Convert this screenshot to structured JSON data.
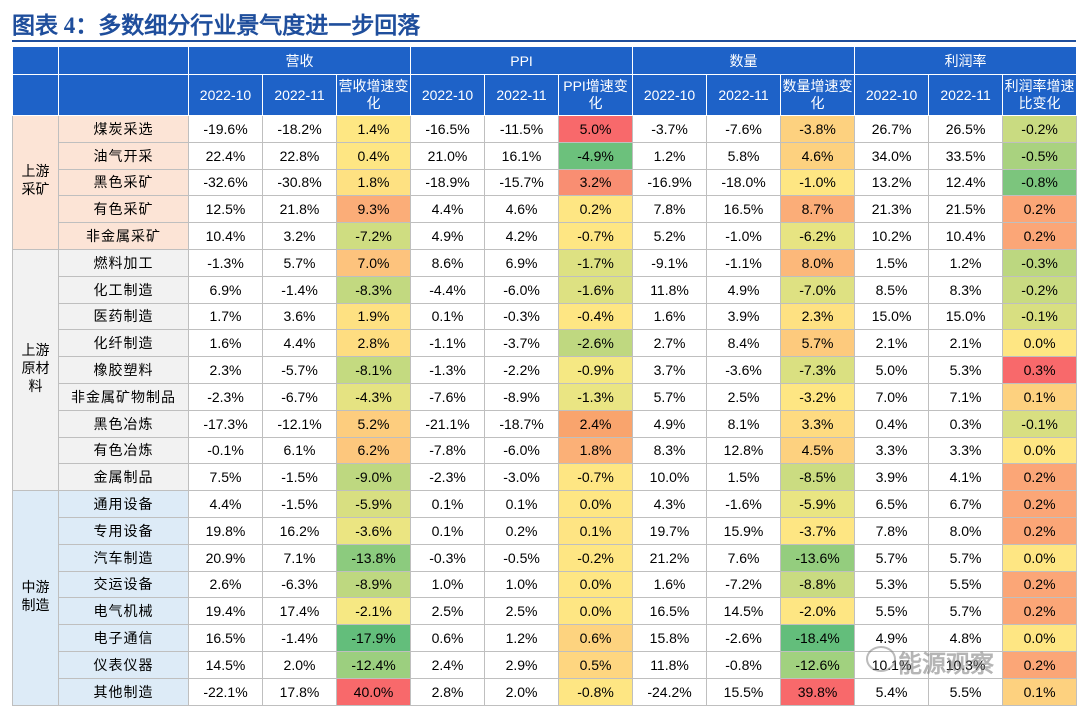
{
  "title": "图表 4：多数细分行业景气度进一步回落",
  "header": {
    "groups": [
      "营收",
      "PPI",
      "数量",
      "利润率"
    ],
    "columns": [
      "2022-10",
      "2022-11",
      "营收增速变化",
      "2022-10",
      "2022-11",
      "PPI增速变化",
      "2022-10",
      "2022-11",
      "数量增速变化",
      "2022-10",
      "2022-11",
      "利润率增速比变化"
    ]
  },
  "sections": [
    {
      "label": "上游采矿",
      "color": "#fce4d6",
      "rows": [
        {
          "name": "煤炭采选",
          "cells": [
            "-19.6%",
            "-18.2%",
            "1.4%",
            "-16.5%",
            "-11.5%",
            "5.0%",
            "-3.7%",
            "-7.6%",
            "-3.8%",
            "26.7%",
            "26.5%",
            "-0.2%"
          ],
          "colors": [
            "#fee783",
            "#f8696b",
            "#fdd17f",
            "#c9db81"
          ]
        },
        {
          "name": "油气开采",
          "cells": [
            "22.4%",
            "22.8%",
            "0.4%",
            "21.0%",
            "16.1%",
            "-4.9%",
            "1.2%",
            "5.8%",
            "4.6%",
            "34.0%",
            "33.5%",
            "-0.5%"
          ],
          "colors": [
            "#fee683",
            "#6cc17c",
            "#fdd17f",
            "#a9d27f"
          ]
        },
        {
          "name": "黑色采矿",
          "cells": [
            "-32.6%",
            "-30.8%",
            "1.8%",
            "-18.9%",
            "-15.7%",
            "3.2%",
            "-16.9%",
            "-18.0%",
            "-1.0%",
            "13.2%",
            "12.4%",
            "-0.8%"
          ],
          "colors": [
            "#fee182",
            "#f98e72",
            "#fee683",
            "#7cc57d"
          ]
        },
        {
          "name": "有色采矿",
          "cells": [
            "12.5%",
            "21.8%",
            "9.3%",
            "4.4%",
            "4.6%",
            "0.2%",
            "7.8%",
            "16.5%",
            "8.7%",
            "21.3%",
            "21.5%",
            "0.2%"
          ],
          "colors": [
            "#fbad78",
            "#fee683",
            "#fbad78",
            "#fba677"
          ]
        },
        {
          "name": "非金属采矿",
          "cells": [
            "10.4%",
            "3.2%",
            "-7.2%",
            "4.9%",
            "4.2%",
            "-0.7%",
            "5.2%",
            "-1.0%",
            "-6.2%",
            "10.2%",
            "10.4%",
            "0.2%"
          ],
          "colors": [
            "#cfdd81",
            "#fee683",
            "#e7e482",
            "#fba677"
          ]
        }
      ]
    },
    {
      "label": "上游原材料",
      "color": "#f2f2f2",
      "rows": [
        {
          "name": "燃料加工",
          "cells": [
            "-1.3%",
            "5.7%",
            "7.0%",
            "8.6%",
            "6.9%",
            "-1.7%",
            "-9.1%",
            "-1.1%",
            "8.0%",
            "1.5%",
            "1.2%",
            "-0.3%"
          ],
          "colors": [
            "#fdc37d",
            "#dde182",
            "#fcb87a",
            "#bcd780"
          ]
        },
        {
          "name": "化工制造",
          "cells": [
            "6.9%",
            "-1.4%",
            "-8.3%",
            "-4.4%",
            "-6.0%",
            "-1.6%",
            "11.8%",
            "4.9%",
            "-7.0%",
            "8.5%",
            "8.3%",
            "-0.2%"
          ],
          "colors": [
            "#c2d980",
            "#dde182",
            "#dee182",
            "#c9db81"
          ]
        },
        {
          "name": "医药制造",
          "cells": [
            "1.7%",
            "3.6%",
            "1.9%",
            "0.1%",
            "-0.3%",
            "-0.4%",
            "1.6%",
            "3.9%",
            "2.3%",
            "15.0%",
            "15.0%",
            "-0.1%"
          ],
          "colors": [
            "#fee182",
            "#fee683",
            "#fee182",
            "#d8df81"
          ]
        },
        {
          "name": "化纤制造",
          "cells": [
            "1.6%",
            "4.4%",
            "2.8%",
            "-1.1%",
            "-3.7%",
            "-2.6%",
            "2.7%",
            "8.4%",
            "5.7%",
            "2.1%",
            "2.1%",
            "0.0%"
          ],
          "colors": [
            "#fedd81",
            "#bfd880",
            "#fdca7d",
            "#fee683"
          ]
        },
        {
          "name": "橡胶塑料",
          "cells": [
            "2.3%",
            "-5.7%",
            "-8.1%",
            "-1.3%",
            "-2.2%",
            "-0.9%",
            "3.7%",
            "-3.6%",
            "-7.3%",
            "5.0%",
            "5.3%",
            "0.3%"
          ],
          "colors": [
            "#c4da80",
            "#f5e883",
            "#dae081",
            "#f8696b"
          ]
        },
        {
          "name": "非金属矿物制品",
          "cells": [
            "-2.3%",
            "-6.7%",
            "-4.3%",
            "-7.6%",
            "-8.9%",
            "-1.3%",
            "5.7%",
            "2.5%",
            "-3.2%",
            "7.0%",
            "7.1%",
            "0.1%"
          ],
          "colors": [
            "#e5e382",
            "#eae583",
            "#fee683",
            "#fdd17f"
          ]
        },
        {
          "name": "黑色冶炼",
          "cells": [
            "-17.3%",
            "-12.1%",
            "5.2%",
            "-21.1%",
            "-18.7%",
            "2.4%",
            "4.9%",
            "8.1%",
            "3.3%",
            "0.4%",
            "0.3%",
            "-0.1%"
          ],
          "colors": [
            "#fdcd7e",
            "#f9a46d",
            "#fedb81",
            "#d8df81"
          ]
        },
        {
          "name": "有色冶炼",
          "cells": [
            "-0.1%",
            "6.1%",
            "6.2%",
            "-7.8%",
            "-6.0%",
            "1.8%",
            "8.3%",
            "12.8%",
            "4.5%",
            "3.3%",
            "3.3%",
            "0.0%"
          ],
          "colors": [
            "#fdc77d",
            "#fbb077",
            "#fdd17f",
            "#fee683"
          ]
        },
        {
          "name": "金属制品",
          "cells": [
            "7.5%",
            "-1.5%",
            "-9.0%",
            "-2.3%",
            "-3.0%",
            "-0.7%",
            "10.0%",
            "1.5%",
            "-8.5%",
            "3.9%",
            "4.1%",
            "0.2%"
          ],
          "colors": [
            "#bed880",
            "#fee683",
            "#cbdc81",
            "#fba677"
          ]
        }
      ]
    },
    {
      "label": "中游制造",
      "color": "#ddebf7",
      "rows": [
        {
          "name": "通用设备",
          "cells": [
            "4.4%",
            "-1.5%",
            "-5.9%",
            "0.1%",
            "0.1%",
            "0.0%",
            "4.3%",
            "-1.6%",
            "-5.9%",
            "6.5%",
            "6.7%",
            "0.2%"
          ],
          "colors": [
            "#d8df81",
            "#fee683",
            "#e9e582",
            "#fba677"
          ]
        },
        {
          "name": "专用设备",
          "cells": [
            "19.8%",
            "16.2%",
            "-3.6%",
            "0.1%",
            "0.2%",
            "0.1%",
            "19.7%",
            "15.9%",
            "-3.7%",
            "7.8%",
            "8.0%",
            "0.2%"
          ],
          "colors": [
            "#ebe582",
            "#fee483",
            "#fee683",
            "#fba677"
          ]
        },
        {
          "name": "汽车制造",
          "cells": [
            "20.9%",
            "7.1%",
            "-13.8%",
            "-0.3%",
            "-0.5%",
            "-0.2%",
            "21.2%",
            "7.6%",
            "-13.6%",
            "5.7%",
            "5.7%",
            "0.0%"
          ],
          "colors": [
            "#8ccb7e",
            "#fee683",
            "#94cd7e",
            "#fee683"
          ]
        },
        {
          "name": "交运设备",
          "cells": [
            "2.6%",
            "-6.3%",
            "-8.9%",
            "1.0%",
            "1.0%",
            "0.0%",
            "1.6%",
            "-7.2%",
            "-8.8%",
            "5.3%",
            "5.5%",
            "0.2%"
          ],
          "colors": [
            "#bed880",
            "#fee683",
            "#c9db81",
            "#fba677"
          ]
        },
        {
          "name": "电气机械",
          "cells": [
            "19.4%",
            "17.4%",
            "-2.1%",
            "2.5%",
            "2.5%",
            "0.0%",
            "16.5%",
            "14.5%",
            "-2.0%",
            "5.5%",
            "5.7%",
            "0.2%"
          ],
          "colors": [
            "#f6e883",
            "#fee683",
            "#fee683",
            "#fba677"
          ]
        },
        {
          "name": "电子通信",
          "cells": [
            "16.5%",
            "-1.4%",
            "-17.9%",
            "0.6%",
            "1.2%",
            "0.6%",
            "15.8%",
            "-2.6%",
            "-18.4%",
            "4.9%",
            "4.8%",
            "0.0%"
          ],
          "colors": [
            "#63be7b",
            "#fdd37f",
            "#63be7b",
            "#fee683"
          ]
        },
        {
          "name": "仪表仪器",
          "cells": [
            "14.5%",
            "2.0%",
            "-12.4%",
            "2.4%",
            "2.9%",
            "0.5%",
            "11.8%",
            "-0.8%",
            "-12.6%",
            "10.1%",
            "10.3%",
            "0.2%"
          ],
          "colors": [
            "#9ccf7f",
            "#fed680",
            "#a1d17f",
            "#fba677"
          ]
        },
        {
          "name": "其他制造",
          "cells": [
            "-22.1%",
            "17.8%",
            "40.0%",
            "2.8%",
            "2.0%",
            "-0.8%",
            "-24.2%",
            "15.5%",
            "39.8%",
            "5.4%",
            "5.5%",
            "0.1%"
          ],
          "colors": [
            "#f8696b",
            "#fee683",
            "#f8696b",
            "#fdd17f"
          ]
        }
      ]
    }
  ],
  "watermark": "能源观察"
}
